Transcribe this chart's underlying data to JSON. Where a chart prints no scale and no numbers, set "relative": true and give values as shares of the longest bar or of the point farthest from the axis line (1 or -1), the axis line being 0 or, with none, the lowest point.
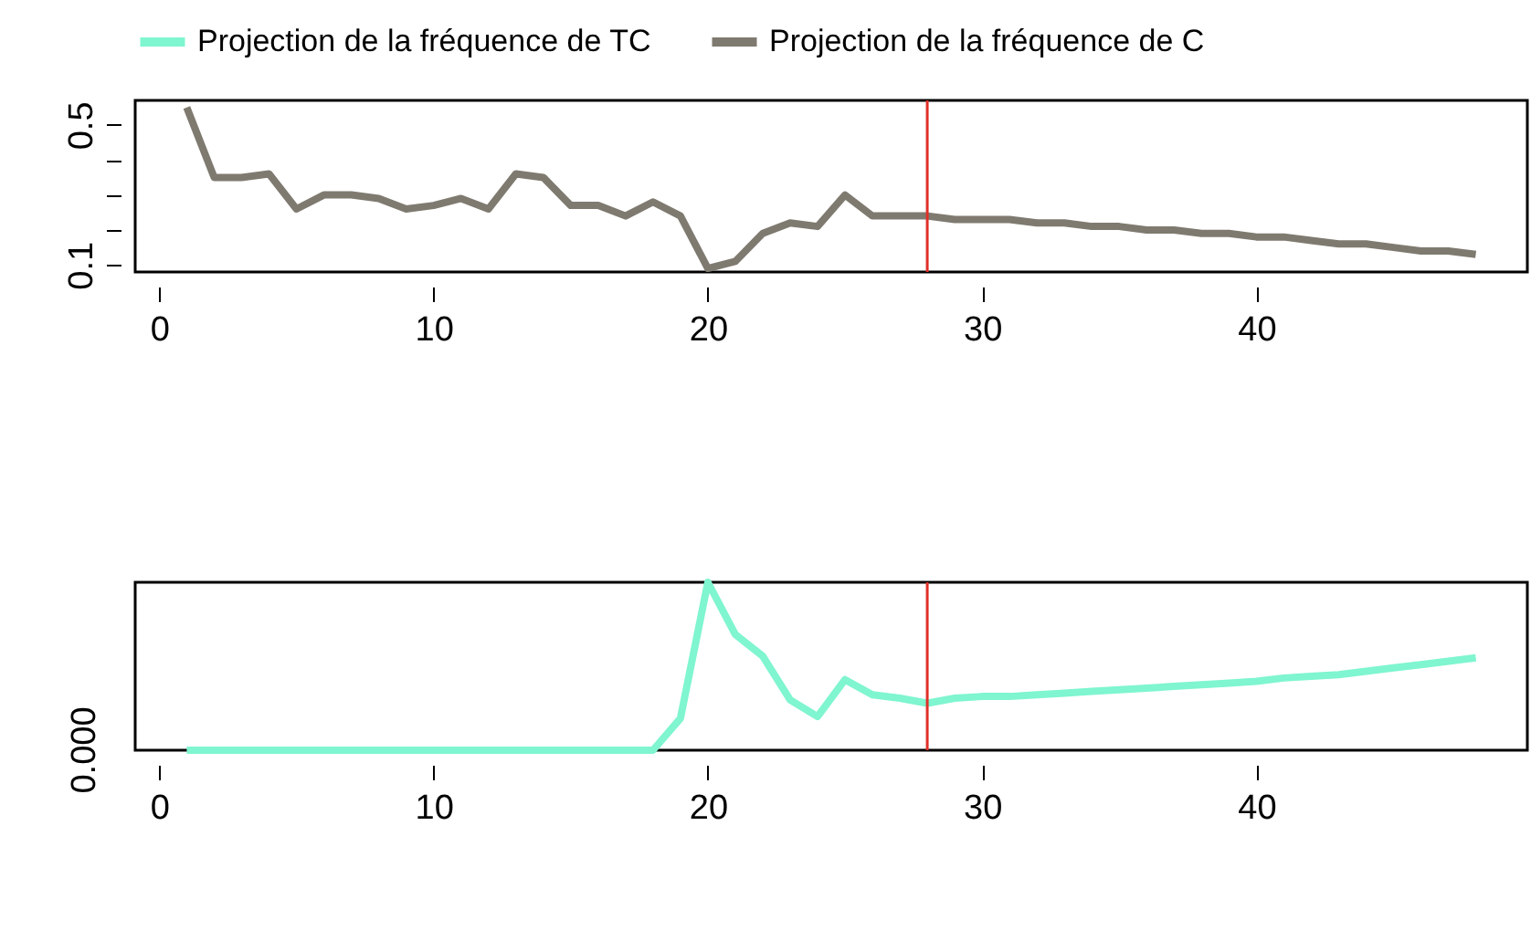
{
  "chart_data": [
    {
      "type": "line",
      "x": [
        1,
        2,
        3,
        4,
        5,
        6,
        7,
        8,
        9,
        10,
        11,
        12,
        13,
        14,
        15,
        16,
        17,
        18,
        19,
        20,
        21,
        22,
        23,
        24,
        25,
        26,
        27,
        28,
        29,
        30,
        31,
        32,
        33,
        34,
        35,
        36,
        37,
        38,
        39,
        40,
        41,
        42,
        43,
        44,
        45,
        46,
        47,
        48
      ],
      "series": [
        {
          "name": "Projection de la fréquence de C",
          "color": "#7f7a70",
          "values": [
            0.55,
            0.35,
            0.35,
            0.36,
            0.26,
            0.3,
            0.3,
            0.29,
            0.26,
            0.27,
            0.29,
            0.26,
            0.36,
            0.35,
            0.27,
            0.27,
            0.24,
            0.28,
            0.24,
            0.09,
            0.11,
            0.19,
            0.22,
            0.21,
            0.3,
            0.24,
            0.24,
            0.24,
            0.23,
            0.23,
            0.23,
            0.22,
            0.22,
            0.21,
            0.21,
            0.2,
            0.2,
            0.19,
            0.19,
            0.18,
            0.18,
            0.17,
            0.16,
            0.16,
            0.15,
            0.14,
            0.14,
            0.13
          ]
        }
      ],
      "xlim": [
        -0.88,
        49.88
      ],
      "ylim": [
        0.08,
        0.57
      ],
      "xticks": [
        0,
        10,
        20,
        30,
        40
      ],
      "yticks": [
        0.1,
        {
          "value": 0.2,
          "label": null
        },
        {
          "value": 0.3,
          "label": null
        },
        {
          "value": 0.4,
          "label": null
        },
        0.5
      ],
      "ref_lines": [
        {
          "axis": "x",
          "value": 28,
          "color": "#e0302a"
        }
      ],
      "legend": "top",
      "grid": false
    },
    {
      "type": "line",
      "x": [
        1,
        2,
        3,
        4,
        5,
        6,
        7,
        8,
        9,
        10,
        11,
        12,
        13,
        14,
        15,
        16,
        17,
        18,
        19,
        20,
        21,
        22,
        23,
        24,
        25,
        26,
        27,
        28,
        29,
        30,
        31,
        32,
        33,
        34,
        35,
        36,
        37,
        38,
        39,
        40,
        41,
        42,
        43,
        44,
        45,
        46,
        47,
        48
      ],
      "series": [
        {
          "name": "Projection de la fréquence de TC",
          "color": "#7ff5d0",
          "values": [
            0,
            0,
            0,
            0,
            0,
            0,
            0,
            0,
            0,
            0,
            0,
            0,
            0,
            0,
            0,
            0,
            0,
            0,
            0.19,
            1,
            0.69,
            0.56,
            0.3,
            0.2,
            0.42,
            0.33,
            0.31,
            0.28,
            0.31,
            0.32,
            0.32,
            0.33,
            0.34,
            0.35,
            0.36,
            0.37,
            0.38,
            0.39,
            0.4,
            0.41,
            0.43,
            0.44,
            0.45,
            0.47,
            0.49,
            0.51,
            0.53,
            0.55
          ]
        }
      ],
      "relative": true,
      "xlim": [
        -0.88,
        49.88
      ],
      "xticks": [
        0,
        10,
        20,
        30,
        40
      ],
      "ref_lines": [
        {
          "axis": "x",
          "value": 28,
          "color": "#e0302a"
        }
      ],
      "legend": "top",
      "grid": false,
      "annotations": [
        "0.000"
      ]
    }
  ]
}
